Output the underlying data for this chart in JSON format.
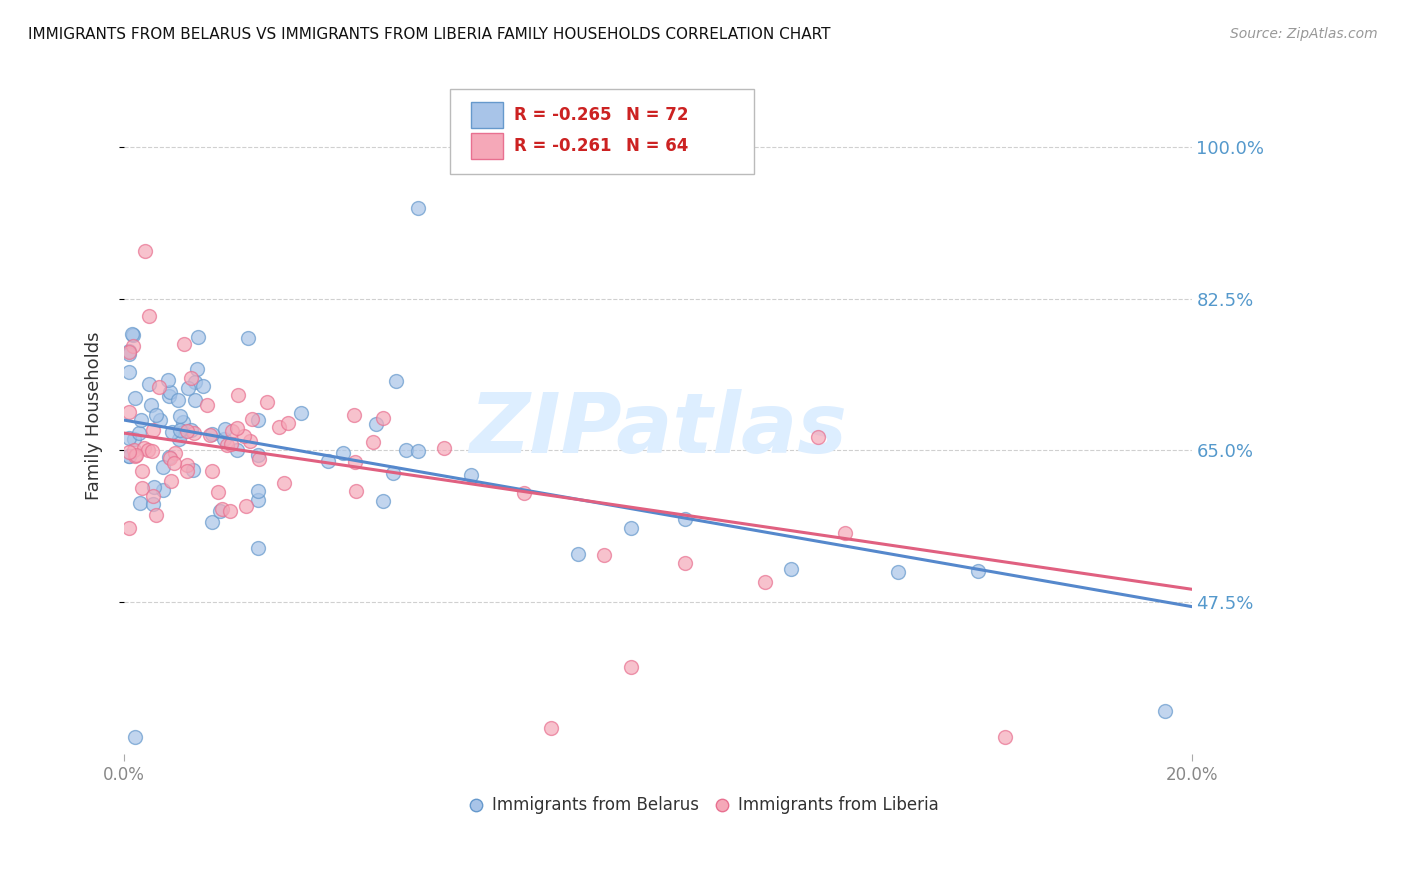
{
  "title": "IMMIGRANTS FROM BELARUS VS IMMIGRANTS FROM LIBERIA FAMILY HOUSEHOLDS CORRELATION CHART",
  "source": "Source: ZipAtlas.com",
  "ylabel": "Family Households",
  "xlim": [
    0.0,
    0.2
  ],
  "ylim": [
    0.3,
    1.08
  ],
  "yticks": [
    0.475,
    0.65,
    0.825,
    1.0
  ],
  "ytick_labels": [
    "47.5%",
    "65.0%",
    "82.5%",
    "100.0%"
  ],
  "xtick_labels": [
    "0.0%",
    "20.0%"
  ],
  "xticks": [
    0.0,
    0.2
  ],
  "grid_color": "#d0d0d0",
  "background_color": "#ffffff",
  "watermark_text": "ZIPatlas",
  "watermark_color": "#ddeeff",
  "legend_r1": "-0.265",
  "legend_n1": "72",
  "legend_r2": "-0.261",
  "legend_n2": "64",
  "color_belarus": "#a8c4e8",
  "color_liberia": "#f5a8b8",
  "edge_color_belarus": "#6699cc",
  "edge_color_liberia": "#e87090",
  "trend_color_belarus": "#5588cc",
  "trend_color_liberia": "#e06080",
  "trend_belarus_y0": 0.685,
  "trend_belarus_y1": 0.47,
  "trend_liberia_y0": 0.67,
  "trend_liberia_y1": 0.49,
  "legend_text_color": "#cc2222",
  "title_color": "#111111",
  "source_color": "#999999",
  "ylabel_color": "#333333",
  "ytick_color": "#5599cc",
  "xtick_color": "#888888"
}
